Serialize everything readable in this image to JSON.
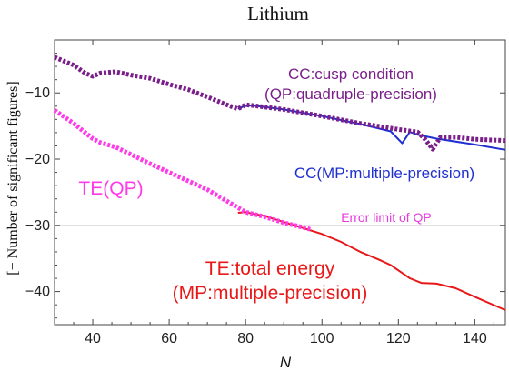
{
  "chart_data": {
    "type": "line",
    "title": "Lithium",
    "xlabel": "N",
    "ylabel": "[− Number of significant figures]",
    "xlim": [
      30,
      148
    ],
    "ylim": [
      -45,
      -2
    ],
    "xticks": [
      40,
      60,
      80,
      100,
      120,
      140
    ],
    "xtick_labels": [
      "40",
      "60",
      "80",
      "100",
      "120",
      "140"
    ],
    "yticks": [
      -10,
      -20,
      -30,
      -40
    ],
    "ytick_labels": [
      "−10",
      "−20",
      "−30",
      "−40"
    ],
    "grid": "horizontal line at y = -30",
    "colors": {
      "cc_qp": "#7a1f8a",
      "cc_mp": "#1f2fd0",
      "te_qp": "#ff3ae8",
      "te_mp": "#e81818",
      "axis": "#444444",
      "grid": "#cfcfcf",
      "error_limit_text": "#e83ae0"
    },
    "series": [
      {
        "name": "CC:cusp condition (QP:quadruple-precision)",
        "style": "dotted",
        "x": [
          30,
          35,
          38,
          40,
          42,
          46,
          50,
          55,
          60,
          65,
          70,
          73,
          76,
          78,
          80,
          82,
          90,
          100,
          110,
          120,
          125,
          127,
          129,
          131,
          135,
          140,
          148
        ],
        "y": [
          -4.6,
          -5.8,
          -7.0,
          -7.5,
          -7.0,
          -6.8,
          -7.3,
          -7.8,
          -8.7,
          -9.5,
          -10.6,
          -11.3,
          -12.0,
          -12.4,
          -11.8,
          -11.9,
          -12.5,
          -13.5,
          -14.6,
          -15.5,
          -15.9,
          -17.0,
          -18.5,
          -16.7,
          -16.7,
          -17.0,
          -17.2
        ]
      },
      {
        "name": "CC(MP:multiple-precision)",
        "style": "solid",
        "x": [
          78,
          80,
          82,
          90,
          100,
          110,
          118,
          121,
          123,
          125,
          130,
          140,
          148
        ],
        "y": [
          -12.4,
          -11.9,
          -11.9,
          -12.5,
          -13.5,
          -14.7,
          -15.8,
          -17.6,
          -15.9,
          -16.3,
          -16.9,
          -17.8,
          -18.6
        ]
      },
      {
        "name": "TE(QP)",
        "style": "dotted",
        "x": [
          30,
          35,
          40,
          42,
          46,
          50,
          55,
          60,
          65,
          70,
          75,
          80,
          85,
          90,
          95,
          97
        ],
        "y": [
          -12.6,
          -14.6,
          -16.9,
          -17.5,
          -18.2,
          -19.3,
          -20.7,
          -22.0,
          -23.3,
          -24.6,
          -26.3,
          -28.0,
          -28.7,
          -29.6,
          -30.3,
          -30.6
        ]
      },
      {
        "name": "TE:total energy (MP:multiple-precision)",
        "style": "solid",
        "x": [
          78,
          80,
          85,
          90,
          95,
          100,
          105,
          110,
          115,
          118,
          121,
          123,
          126,
          130,
          135,
          140,
          148
        ],
        "y": [
          -28.1,
          -28.0,
          -28.6,
          -29.5,
          -30.4,
          -31.3,
          -32.5,
          -34.0,
          -35.2,
          -36.0,
          -37.2,
          -38.0,
          -38.7,
          -38.8,
          -39.5,
          -40.8,
          -42.8
        ]
      }
    ],
    "annotations": {
      "cc_qp_line1": "CC:cusp condition",
      "cc_qp_line2": "(QP:quadruple-precision)",
      "cc_mp": "CC(MP:multiple-precision)",
      "te_qp": "TE(QP)",
      "error_limit": "Error limit of QP",
      "te_mp_line1": "TE:total energy",
      "te_mp_line2": "(MP:multiple-precision)"
    }
  }
}
